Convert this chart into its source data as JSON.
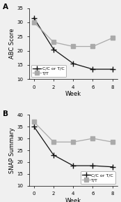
{
  "panel_A": {
    "label": "A",
    "ylabel": "ABC Score",
    "xlabel": "Week",
    "ylim": [
      10.0,
      35.0
    ],
    "yticks": [
      10.0,
      15.0,
      20.0,
      25.0,
      30.0,
      35.0
    ],
    "xticks": [
      0,
      2,
      4,
      6,
      8
    ],
    "series": [
      {
        "label": "C/C or T/C",
        "x": [
          0,
          2,
          4,
          6,
          8
        ],
        "y": [
          31.5,
          20.5,
          15.5,
          13.5,
          13.5
        ],
        "color": "#111111",
        "marker": "+",
        "linestyle": "-",
        "markersize": 6,
        "linewidth": 0.9
      },
      {
        "label": "T/T",
        "x": [
          0,
          2,
          4,
          6,
          8
        ],
        "y": [
          30.0,
          23.0,
          21.5,
          21.5,
          24.5
        ],
        "color": "#aaaaaa",
        "marker": "s",
        "linestyle": "-",
        "markersize": 4,
        "linewidth": 0.9
      }
    ],
    "legend_loc": "lower left"
  },
  "panel_B": {
    "label": "B",
    "ylabel": "SNAP Summary",
    "xlabel": "Week",
    "ylim": [
      10.0,
      40.0
    ],
    "yticks": [
      10.0,
      15.0,
      20.0,
      25.0,
      30.0,
      35.0,
      40.0
    ],
    "xticks": [
      0,
      2,
      4,
      6,
      8
    ],
    "series": [
      {
        "label": "C/C or T/C",
        "x": [
          0,
          2,
          4,
          6,
          8
        ],
        "y": [
          35.0,
          23.0,
          18.5,
          18.5,
          18.0
        ],
        "color": "#111111",
        "marker": "+",
        "linestyle": "-",
        "markersize": 6,
        "linewidth": 0.9
      },
      {
        "label": "T/T",
        "x": [
          0,
          2,
          4,
          6,
          8
        ],
        "y": [
          37.0,
          28.5,
          28.5,
          30.0,
          28.5
        ],
        "color": "#aaaaaa",
        "marker": "s",
        "linestyle": "-",
        "markersize": 4,
        "linewidth": 0.9
      }
    ],
    "legend_loc": "lower right"
  },
  "legend_fontsize": 4.5,
  "tick_fontsize": 5.0,
  "label_fontsize": 6.0,
  "panel_label_fontsize": 7.5,
  "background_color": "#f0f0f0"
}
